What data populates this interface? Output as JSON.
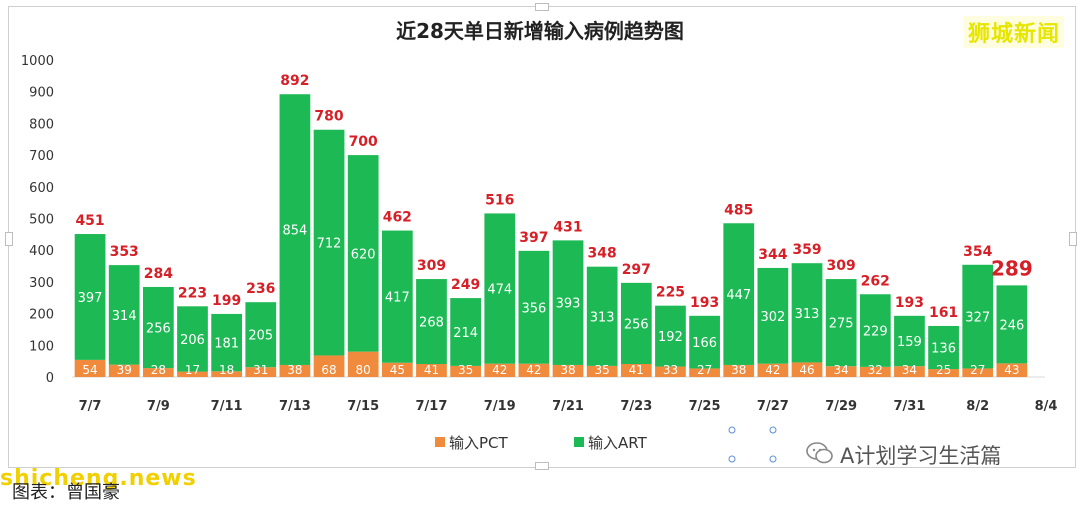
{
  "chart_data": {
    "type": "bar",
    "stacked": true,
    "title": "近28天单日新增输入病例趋势图",
    "categories": [
      "7/7",
      "7/8",
      "7/9",
      "7/10",
      "7/11",
      "7/12",
      "7/13",
      "7/14",
      "7/15",
      "7/16",
      "7/17",
      "7/18",
      "7/19",
      "7/20",
      "7/21",
      "7/22",
      "7/23",
      "7/24",
      "7/25",
      "7/26",
      "7/27",
      "7/28",
      "7/29",
      "7/30",
      "7/31",
      "8/1",
      "8/2",
      "8/3"
    ],
    "x_tick_labels": [
      "7/7",
      "7/9",
      "7/11",
      "7/13",
      "7/15",
      "7/17",
      "7/19",
      "7/21",
      "7/23",
      "7/25",
      "7/27",
      "7/29",
      "7/31",
      "8/2",
      "8/4"
    ],
    "series": [
      {
        "name": "输入PCT",
        "color": "#f08a3c",
        "values": [
          54,
          39,
          28,
          17,
          18,
          31,
          38,
          68,
          80,
          45,
          41,
          35,
          42,
          42,
          38,
          35,
          41,
          33,
          27,
          38,
          42,
          46,
          34,
          32,
          34,
          25,
          27,
          43
        ]
      },
      {
        "name": "输入ART",
        "color": "#1db954",
        "values": [
          397,
          314,
          256,
          206,
          181,
          205,
          854,
          712,
          620,
          417,
          268,
          214,
          474,
          356,
          393,
          313,
          256,
          192,
          166,
          447,
          302,
          313,
          275,
          229,
          159,
          136,
          327,
          246
        ]
      }
    ],
    "totals": [
      451,
      353,
      284,
      223,
      199,
      236,
      892,
      780,
      700,
      462,
      309,
      249,
      516,
      397,
      431,
      348,
      297,
      225,
      193,
      485,
      344,
      359,
      309,
      262,
      193,
      161,
      354,
      289
    ],
    "ylim": [
      0,
      1000
    ],
    "y_ticks": [
      0,
      100,
      200,
      300,
      400,
      500,
      600,
      700,
      800,
      900,
      1000
    ],
    "legend_position": "bottom",
    "total_color": "#d61f26"
  },
  "brand": "狮城新闻",
  "wechat_label": "A计划学习生活篇",
  "watermark": "shicheng.news",
  "source_text": "图表：曾国豪"
}
